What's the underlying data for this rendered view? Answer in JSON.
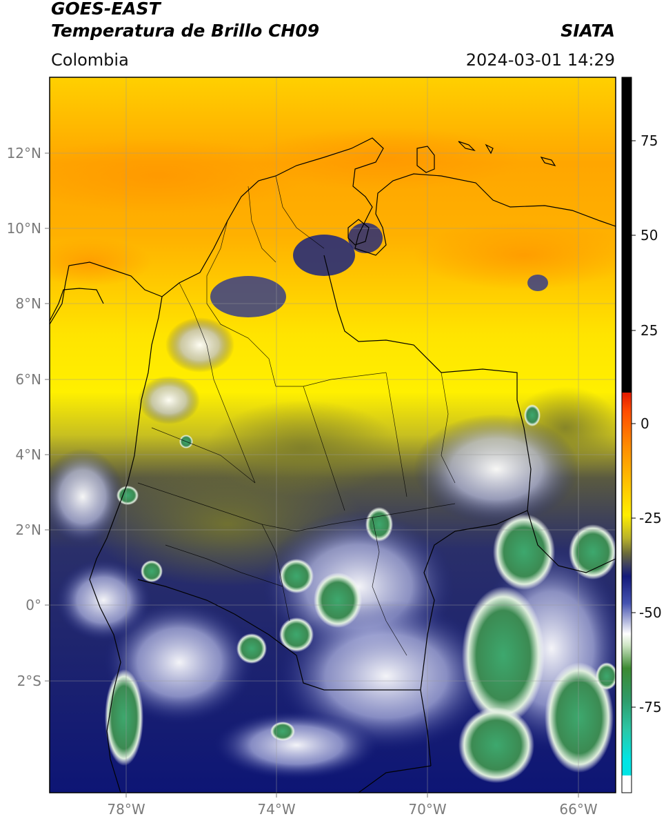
{
  "header": {
    "title_line1": "GOES-EAST",
    "title_line2": "Temperatura de Brillo CH09",
    "agency": "SIATA",
    "region": "Colombia",
    "timestamp": "2024-03-01 14:29"
  },
  "map": {
    "lon_ticks": [
      "78°W",
      "74°W",
      "70°W",
      "66°W"
    ],
    "lat_ticks": [
      "12°N",
      "10°N",
      "8°N",
      "6°N",
      "4°N",
      "2°N",
      "0°",
      "2°S"
    ]
  },
  "colorbar": {
    "tick_labels": [
      "75",
      "50",
      "25",
      "0",
      "-25",
      "-50",
      "-75"
    ],
    "colors": {
      "black_top": "#000000",
      "red": "#e21a00",
      "orange": "#ff8c00",
      "yellow": "#ffee00",
      "olive": "#7a7a2a",
      "navy": "#131a7a",
      "white": "#ffffff",
      "green": "#3c8a32",
      "teal": "#2bc7a6",
      "cyan": "#00e5e5"
    }
  }
}
